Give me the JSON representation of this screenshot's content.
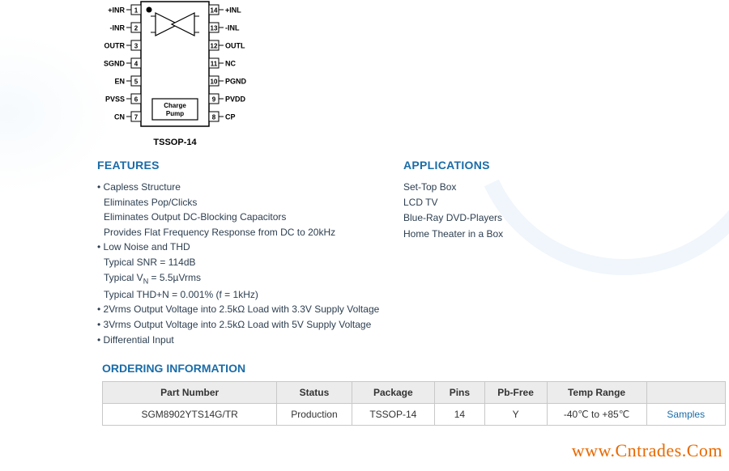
{
  "chip": {
    "package_label": "TSSOP-14",
    "internal_block": "Charge Pump",
    "left_pins": [
      {
        "num": "1",
        "label": "+INR"
      },
      {
        "num": "2",
        "label": "-INR"
      },
      {
        "num": "3",
        "label": "OUTR"
      },
      {
        "num": "4",
        "label": "SGND"
      },
      {
        "num": "5",
        "label": "EN"
      },
      {
        "num": "6",
        "label": "PVSS"
      },
      {
        "num": "7",
        "label": "CN"
      }
    ],
    "right_pins": [
      {
        "num": "14",
        "label": "+INL"
      },
      {
        "num": "13",
        "label": "-INL"
      },
      {
        "num": "12",
        "label": "OUTL"
      },
      {
        "num": "11",
        "label": "NC"
      },
      {
        "num": "10",
        "label": "PGND"
      },
      {
        "num": "9",
        "label": "PVDD"
      },
      {
        "num": "8",
        "label": "CP"
      }
    ],
    "stroke": "#000000",
    "fill": "#ffffff",
    "label_fontsize": 10
  },
  "features": {
    "heading": "FEATURES",
    "items": [
      {
        "text": "Capless Structure",
        "subs": [
          "Eliminates Pop/Clicks",
          "Eliminates Output DC-Blocking Capacitors",
          "Provides Flat Frequency Response from DC to 20kHz"
        ]
      },
      {
        "text": "Low Noise and THD",
        "subs": [
          "Typical SNR = 114dB",
          "Typical V<sub class='sml'>N</sub> = 5.5µVrms",
          "Typical THD+N = 0.001% (f = 1kHz)"
        ]
      },
      {
        "text": "2Vrms Output Voltage into 2.5kΩ Load with 3.3V Supply Voltage",
        "subs": []
      },
      {
        "text": "3Vrms Output Voltage into 2.5kΩ Load with 5V Supply Voltage",
        "subs": []
      },
      {
        "text": "Differential Input",
        "subs": []
      }
    ]
  },
  "applications": {
    "heading": "APPLICATIONS",
    "items": [
      "Set-Top Box",
      "LCD TV",
      "Blue-Ray DVD-Players",
      "Home Theater in a Box"
    ]
  },
  "ordering": {
    "heading": "ORDERING INFORMATION",
    "columns": [
      "Part Number",
      "Status",
      "Package",
      "Pins",
      "Pb-Free",
      "Temp Range",
      ""
    ],
    "col_widths": [
      "210px",
      "90px",
      "100px",
      "60px",
      "75px",
      "120px",
      "95px"
    ],
    "row": {
      "part": "SGM8902YTS14G/TR",
      "status": "Production",
      "package": "TSSOP-14",
      "pins": "14",
      "pbfree": "Y",
      "temp": "-40℃ to +85℃",
      "samples": "Samples"
    },
    "header_bg": "#ececec",
    "border_color": "#c8c8c8"
  },
  "watermark": "www.Cntrades.Com",
  "colors": {
    "heading": "#1a6ca8",
    "body_text": "#2c3e50",
    "link": "#1a6ca8",
    "watermark": "#e96a00"
  }
}
